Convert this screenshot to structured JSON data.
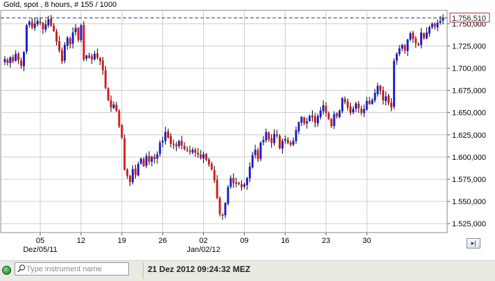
{
  "chart": {
    "title": "Gold, spot , 8 hours, # 155 / 1000",
    "current_price_label": "1.756,510",
    "y_ticks": [
      "1.750,000",
      "1.725,000",
      "1.700,000",
      "1.675,000",
      "1.650,000",
      "1.625,000",
      "1.600,000",
      "1.575,000",
      "1.550,000",
      "1.525,000"
    ],
    "x_ticks": [
      "05",
      "12",
      "19",
      "26",
      "02",
      "09",
      "16",
      "23",
      "30"
    ],
    "x_date_labels": [
      "Dez/05/11",
      "Jan/02/12"
    ]
  },
  "chart_data": {
    "type": "candlestick",
    "instrument": "Gold, spot",
    "timeframe": "8 hours",
    "ylim": [
      1515,
      1765
    ],
    "grid": true,
    "up_color": "#1a1ad0",
    "down_color": "#d81818",
    "price_line_color": "#2a2aa8",
    "last_price": 1756.51,
    "close_series": [
      1710,
      1706,
      1712,
      1708,
      1716,
      1709,
      1703,
      1718,
      1748,
      1752,
      1746,
      1750,
      1753,
      1751,
      1744,
      1749,
      1755,
      1748,
      1742,
      1730,
      1720,
      1708,
      1726,
      1734,
      1727,
      1740,
      1745,
      1732,
      1748,
      1710,
      1714,
      1712,
      1710,
      1716,
      1712,
      1708,
      1698,
      1678,
      1664,
      1656,
      1659,
      1652,
      1635,
      1622,
      1586,
      1579,
      1572,
      1586,
      1580,
      1592,
      1598,
      1590,
      1601,
      1595,
      1600,
      1598,
      1603,
      1616,
      1618,
      1628,
      1622,
      1615,
      1614,
      1612,
      1618,
      1613,
      1609,
      1608,
      1606,
      1608,
      1605,
      1603,
      1599,
      1603,
      1597,
      1592,
      1586,
      1574,
      1554,
      1536,
      1534,
      1548,
      1566,
      1576,
      1571,
      1571,
      1570,
      1566,
      1569,
      1576,
      1589,
      1602,
      1608,
      1598,
      1616,
      1619,
      1628,
      1620,
      1616,
      1626,
      1624,
      1610,
      1618,
      1620,
      1616,
      1614,
      1618,
      1630,
      1639,
      1645,
      1638,
      1640,
      1646,
      1645,
      1639,
      1646,
      1652,
      1658,
      1650,
      1643,
      1635,
      1648,
      1646,
      1652,
      1666,
      1662,
      1656,
      1650,
      1654,
      1660,
      1655,
      1650,
      1654,
      1663,
      1660,
      1664,
      1672,
      1680,
      1675,
      1664,
      1668,
      1661,
      1656,
      1708,
      1716,
      1722,
      1726,
      1720,
      1732,
      1739,
      1733,
      1728,
      1726,
      1740,
      1734,
      1740,
      1746,
      1750,
      1747,
      1751,
      1753,
      1756.51
    ]
  },
  "statusbar": {
    "search_placeholder": "Type instrument name",
    "clock": "21 Dez 2012 09:24:32 MEZ"
  },
  "nav_button_glyph": "▸|",
  "colors": {
    "axis_bg": "#ffffff",
    "grid": "#cccccc",
    "status_bg": "#eaeae3"
  }
}
